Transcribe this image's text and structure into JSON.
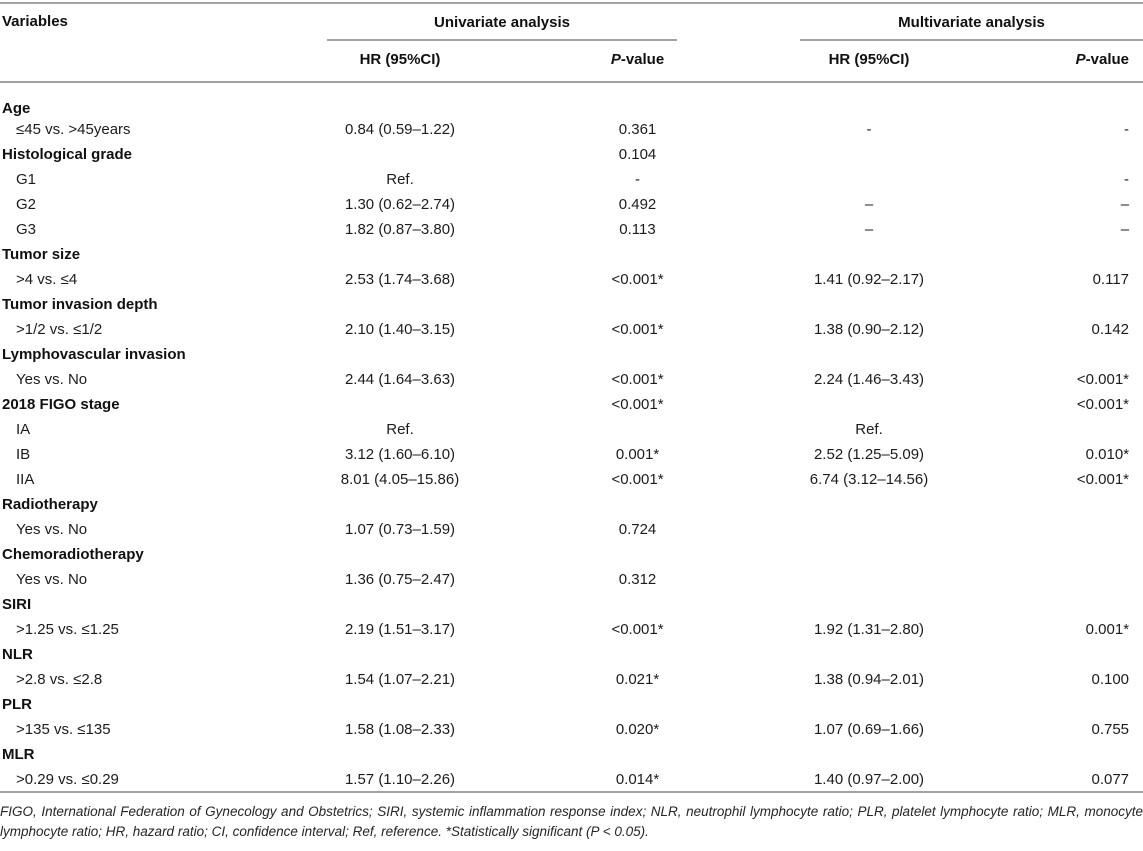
{
  "colors": {
    "text": "#1c1c1c",
    "rule": "#a2a2a2",
    "bg": "#ffffff"
  },
  "header": {
    "variables_label": "Variables",
    "univariate": {
      "label": "Univariate analysis",
      "hr_label": "HR (95%CI)",
      "p_italic": "P",
      "p_rest": "-value"
    },
    "multivariate": {
      "label": "Multivariate analysis",
      "hr_label": "HR (95%CI)",
      "p_italic": "P",
      "p_rest": "-value"
    }
  },
  "rows": [
    {
      "type": "group",
      "label": "Age",
      "u_hr": "",
      "u_p": "",
      "m_hr": "",
      "m_p": ""
    },
    {
      "type": "data",
      "label": "≤45 vs. >45years",
      "u_hr": "0.84 (0.59–1.22)",
      "u_p": "0.361",
      "m_hr": "-",
      "m_p": "-"
    },
    {
      "type": "group",
      "label": "Histological grade",
      "u_hr": "",
      "u_p": "0.104",
      "m_hr": "",
      "m_p": ""
    },
    {
      "type": "data",
      "label": "G1",
      "u_hr": "Ref.",
      "u_p": "-",
      "m_hr": "",
      "m_p": "-"
    },
    {
      "type": "data",
      "label": "G2",
      "u_hr": "1.30 (0.62–2.74)",
      "u_p": "0.492",
      "m_hr": "–",
      "m_p": "–"
    },
    {
      "type": "data",
      "label": "G3",
      "u_hr": "1.82 (0.87–3.80)",
      "u_p": "0.113",
      "m_hr": "–",
      "m_p": "–"
    },
    {
      "type": "group",
      "label": "Tumor size",
      "u_hr": "",
      "u_p": "",
      "m_hr": "",
      "m_p": ""
    },
    {
      "type": "data",
      "label": ">4 vs. ≤4",
      "u_hr": "2.53 (1.74–3.68)",
      "u_p": "<0.001*",
      "m_hr": "1.41 (0.92–2.17)",
      "m_p": "0.117"
    },
    {
      "type": "group",
      "label": "Tumor invasion depth",
      "u_hr": "",
      "u_p": "",
      "m_hr": "",
      "m_p": ""
    },
    {
      "type": "data",
      "label": ">1/2 vs. ≤1/2",
      "u_hr": "2.10 (1.40–3.15)",
      "u_p": "<0.001*",
      "m_hr": "1.38 (0.90–2.12)",
      "m_p": "0.142"
    },
    {
      "type": "group",
      "label": "Lymphovascular invasion",
      "u_hr": "",
      "u_p": "",
      "m_hr": "",
      "m_p": ""
    },
    {
      "type": "data",
      "label": "Yes vs. No",
      "u_hr": "2.44 (1.64–3.63)",
      "u_p": "<0.001*",
      "m_hr": "2.24 (1.46–3.43)",
      "m_p": "<0.001*"
    },
    {
      "type": "group",
      "label": "2018 FIGO stage",
      "u_hr": "",
      "u_p": "<0.001*",
      "m_hr": "",
      "m_p": "<0.001*"
    },
    {
      "type": "data",
      "label": "IA",
      "u_hr": "Ref.",
      "u_p": "",
      "m_hr": "Ref.",
      "m_p": ""
    },
    {
      "type": "data",
      "label": "IB",
      "u_hr": "3.12 (1.60–6.10)",
      "u_p": "0.001*",
      "m_hr": "2.52 (1.25–5.09)",
      "m_p": "0.010*"
    },
    {
      "type": "data",
      "label": "IIA",
      "u_hr": "8.01 (4.05–15.86)",
      "u_p": "<0.001*",
      "m_hr": "6.74 (3.12–14.56)",
      "m_p": "<0.001*"
    },
    {
      "type": "group",
      "label": "Radiotherapy",
      "u_hr": "",
      "u_p": "",
      "m_hr": "",
      "m_p": ""
    },
    {
      "type": "data",
      "label": "Yes vs. No",
      "u_hr": "1.07 (0.73–1.59)",
      "u_p": "0.724",
      "m_hr": "",
      "m_p": ""
    },
    {
      "type": "group",
      "label": "Chemoradiotherapy",
      "u_hr": "",
      "u_p": "",
      "m_hr": "",
      "m_p": ""
    },
    {
      "type": "data",
      "label": "Yes vs. No",
      "u_hr": "1.36 (0.75–2.47)",
      "u_p": "0.312",
      "m_hr": "",
      "m_p": ""
    },
    {
      "type": "group",
      "label": "SIRI",
      "u_hr": "",
      "u_p": "",
      "m_hr": "",
      "m_p": ""
    },
    {
      "type": "data",
      "label": ">1.25 vs. ≤1.25",
      "u_hr": "2.19 (1.51–3.17)",
      "u_p": "<0.001*",
      "m_hr": "1.92 (1.31–2.80)",
      "m_p": "0.001*"
    },
    {
      "type": "group",
      "label": "NLR",
      "u_hr": "",
      "u_p": "",
      "m_hr": "",
      "m_p": ""
    },
    {
      "type": "data",
      "label": ">2.8 vs. ≤2.8",
      "u_hr": "1.54 (1.07–2.21)",
      "u_p": "0.021*",
      "m_hr": "1.38 (0.94–2.01)",
      "m_p": "0.100"
    },
    {
      "type": "group",
      "label": "PLR",
      "u_hr": "",
      "u_p": "",
      "m_hr": "",
      "m_p": ""
    },
    {
      "type": "data",
      "label": ">135 vs. ≤135",
      "u_hr": "1.58 (1.08–2.33)",
      "u_p": "0.020*",
      "m_hr": "1.07 (0.69–1.66)",
      "m_p": "0.755"
    },
    {
      "type": "group",
      "label": "MLR",
      "u_hr": "",
      "u_p": "",
      "m_hr": "",
      "m_p": ""
    },
    {
      "type": "data",
      "label": ">0.29 vs. ≤0.29",
      "u_hr": "1.57 (1.10–2.26)",
      "u_p": "0.014*",
      "m_hr": "1.40 (0.97–2.00)",
      "m_p": "0.077"
    }
  ],
  "footnote": "FIGO, International Federation of Gynecology and Obstetrics; SIRI, systemic inflammation response index; NLR, neutrophil lymphocyte ratio; PLR, platelet lymphocyte ratio; MLR, monocyte lymphocyte ratio; HR, hazard ratio; CI, confidence interval; Ref, reference. *Statistically significant (P < 0.05)."
}
